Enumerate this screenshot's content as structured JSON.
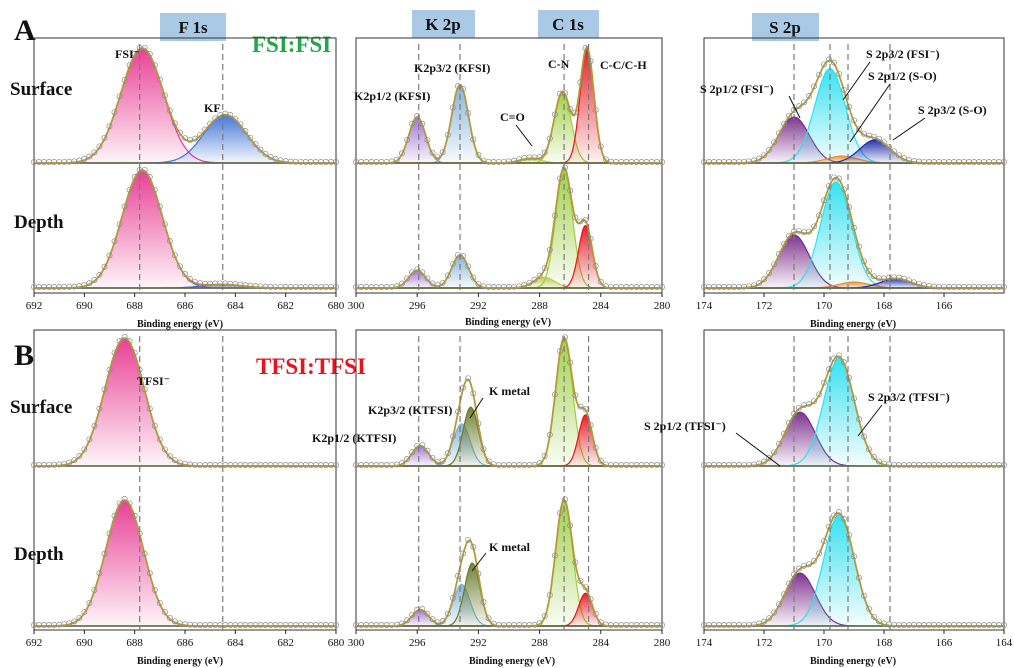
{
  "labels": {
    "panel_a": "A",
    "panel_b": "B",
    "cond_a": "FSI:FSI",
    "cond_b": "TFSI:TFSI",
    "surface": "Surface",
    "depth": "Depth",
    "xlabel": "Binding energy (eV)"
  },
  "colors": {
    "fsi": "#22a84a",
    "tfsi": "#e8141c",
    "tag_bg": "#a9c9e4",
    "fit": "#b39a3a",
    "raw": "#8a8a8a",
    "background": "#5a6a3a",
    "guide": "#7a7a7a"
  },
  "chart_data": [
    {
      "type": "area",
      "id": "F1s",
      "title": "F 1s",
      "xlabel": "Binding energy (eV)",
      "xlim": [
        692,
        680
      ],
      "x_ticks": [
        692,
        690,
        688,
        686,
        684,
        682,
        680
      ],
      "guides": [
        687.8,
        684.5
      ],
      "panels": {
        "A_surface": {
          "peaks": [
            {
              "name": "FSI⁻",
              "center": 687.7,
              "height": 1.0,
              "width": 0.85,
              "color": "#e8368f"
            },
            {
              "name": "KF",
              "center": 684.4,
              "height": 0.42,
              "width": 0.85,
              "color": "#3a6fd8"
            }
          ]
        },
        "A_depth": {
          "peaks": [
            {
              "name": "FSI⁻",
              "center": 687.7,
              "height": 1.0,
              "width": 0.8,
              "color": "#e8368f"
            },
            {
              "name": "KF",
              "center": 684.5,
              "height": 0.03,
              "width": 0.8,
              "color": "#3a6fd8"
            }
          ]
        },
        "B_surface": {
          "peaks": [
            {
              "name": "TFSI⁻",
              "center": 688.4,
              "height": 1.0,
              "width": 0.78,
              "color": "#e8368f"
            }
          ]
        },
        "B_depth": {
          "peaks": [
            {
              "name": "TFSI⁻",
              "center": 688.4,
              "height": 1.0,
              "width": 0.75,
              "color": "#e8368f"
            }
          ]
        }
      }
    },
    {
      "type": "area",
      "id": "K2p_C1s",
      "titles": [
        "K 2p",
        "C 1s"
      ],
      "xlabel": "Binding energy (eV)",
      "xlim": [
        300,
        280
      ],
      "x_ticks": [
        300,
        296,
        292,
        288,
        284,
        280
      ],
      "guides": [
        295.9,
        293.2,
        286.4,
        284.8
      ],
      "panels": {
        "A_surface": {
          "peaks": [
            {
              "name": "K2p1/2 (KFSI)",
              "center": 296.0,
              "height": 0.4,
              "width": 0.55,
              "color": "#9b6fd1"
            },
            {
              "name": "K2p3/2 (KFSI)",
              "center": 293.2,
              "height": 0.68,
              "width": 0.55,
              "color": "#7fb0d8"
            },
            {
              "name": "C=O",
              "center": 288.6,
              "height": 0.04,
              "width": 0.7,
              "color": "#c0c850"
            },
            {
              "name": "C-N",
              "center": 286.5,
              "height": 0.62,
              "width": 0.55,
              "color": "#9ccf3e"
            },
            {
              "name": "C-C/C-H",
              "center": 284.9,
              "height": 1.0,
              "width": 0.45,
              "color": "#e8141c"
            }
          ]
        },
        "A_depth": {
          "peaks": [
            {
              "name": "K2p1/2 (KFSI)",
              "center": 296.0,
              "height": 0.15,
              "width": 0.55,
              "color": "#9b6fd1"
            },
            {
              "name": "K2p3/2 (KFSI)",
              "center": 293.2,
              "height": 0.28,
              "width": 0.55,
              "color": "#7fb0d8"
            },
            {
              "name": "C=O",
              "center": 287.7,
              "height": 0.09,
              "width": 0.7,
              "color": "#c0c850"
            },
            {
              "name": "C-N",
              "center": 286.4,
              "height": 1.0,
              "width": 0.55,
              "color": "#9ccf3e"
            },
            {
              "name": "C-C/C-H",
              "center": 285.0,
              "height": 0.53,
              "width": 0.45,
              "color": "#e8141c"
            }
          ]
        },
        "B_surface": {
          "peaks": [
            {
              "name": "K2p1/2 (KTFSI)",
              "center": 295.8,
              "height": 0.16,
              "width": 0.55,
              "color": "#9b6fd1"
            },
            {
              "name": "K2p3/2 (KTFSI)",
              "center": 293.1,
              "height": 0.33,
              "width": 0.55,
              "color": "#7fb0d8"
            },
            {
              "name": "K metal",
              "center": 292.5,
              "height": 0.46,
              "width": 0.5,
              "color": "#6b7a2a"
            },
            {
              "name": "C-N",
              "center": 286.4,
              "height": 1.0,
              "width": 0.55,
              "color": "#9ccf3e"
            },
            {
              "name": "C-C/C-H",
              "center": 285.0,
              "height": 0.4,
              "width": 0.45,
              "color": "#e8141c"
            }
          ]
        },
        "B_depth": {
          "peaks": [
            {
              "name": "K2p1/2 (KTFSI)",
              "center": 295.8,
              "height": 0.13,
              "width": 0.55,
              "color": "#9b6fd1"
            },
            {
              "name": "K2p3/2 (KTFSI)",
              "center": 293.1,
              "height": 0.33,
              "width": 0.55,
              "color": "#7fb0d8"
            },
            {
              "name": "K metal",
              "center": 292.4,
              "height": 0.5,
              "width": 0.5,
              "color": "#6b7a2a"
            },
            {
              "name": "C-N",
              "center": 286.4,
              "height": 1.0,
              "width": 0.55,
              "color": "#9ccf3e"
            },
            {
              "name": "C-C/C-H",
              "center": 285.0,
              "height": 0.26,
              "width": 0.45,
              "color": "#e8141c"
            }
          ]
        }
      }
    },
    {
      "type": "area",
      "id": "S2p",
      "title": "S 2p",
      "xlabel": "Binding energy (eV)",
      "xlim": [
        174,
        164
      ],
      "x_ticks_top": [
        174,
        172,
        170,
        168,
        166
      ],
      "x_ticks_bottom": [
        174,
        172,
        170,
        168,
        166,
        164
      ],
      "guides": [
        171.0,
        169.8,
        169.2,
        167.8
      ],
      "panels": {
        "A_surface": {
          "peaks": [
            {
              "name": "S 2p1/2 (FSI⁻)",
              "center": 171.0,
              "height": 0.4,
              "width": 0.6,
              "color": "#7a2a8a"
            },
            {
              "name": "S 2p3/2 (FSI⁻)",
              "center": 169.8,
              "height": 0.82,
              "width": 0.6,
              "color": "#2ee0f0"
            },
            {
              "name": "S 2p1/2 (S-O)",
              "center": 169.4,
              "height": 0.06,
              "width": 0.6,
              "color": "#f08a30"
            },
            {
              "name": "S 2p3/2 (S-O)",
              "center": 168.3,
              "height": 0.2,
              "width": 0.6,
              "color": "#1a2aa8"
            }
          ]
        },
        "A_depth": {
          "peaks": [
            {
              "name": "S 2p1/2 (FSI⁻)",
              "center": 171.0,
              "height": 0.45,
              "width": 0.6,
              "color": "#7a2a8a"
            },
            {
              "name": "S 2p3/2 (FSI⁻)",
              "center": 169.6,
              "height": 0.9,
              "width": 0.6,
              "color": "#2ee0f0"
            },
            {
              "name": "S 2p1/2 (S-O)",
              "center": 169.0,
              "height": 0.05,
              "width": 0.6,
              "color": "#f08a30"
            },
            {
              "name": "S 2p3/2 (S-O)",
              "center": 167.6,
              "height": 0.08,
              "width": 0.6,
              "color": "#1a2aa8"
            }
          ]
        },
        "B_surface": {
          "peaks": [
            {
              "name": "S 2p1/2 (TFSI⁻)",
              "center": 170.8,
              "height": 0.42,
              "width": 0.6,
              "color": "#7a2a8a"
            },
            {
              "name": "S 2p3/2 (TFSI⁻)",
              "center": 169.5,
              "height": 0.84,
              "width": 0.6,
              "color": "#2ee0f0"
            }
          ]
        },
        "B_depth": {
          "peaks": [
            {
              "name": "S 2p1/2 (TFSI⁻)",
              "center": 170.8,
              "height": 0.42,
              "width": 0.6,
              "color": "#7a2a8a"
            },
            {
              "name": "S 2p3/2 (TFSI⁻)",
              "center": 169.5,
              "height": 0.88,
              "width": 0.6,
              "color": "#2ee0f0"
            }
          ]
        }
      }
    }
  ]
}
